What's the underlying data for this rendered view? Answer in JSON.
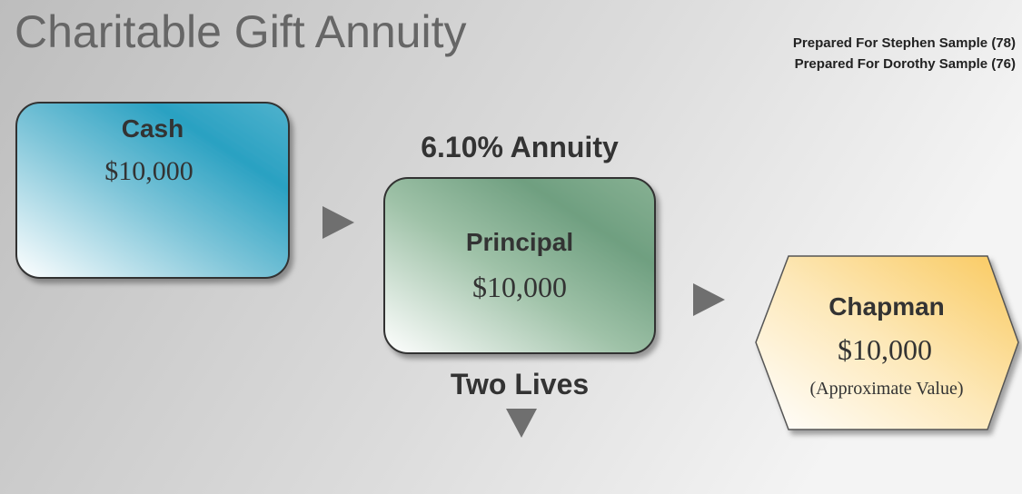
{
  "title": "Charitable Gift Annuity",
  "prepared_for": [
    "Prepared For Stephen Sample (78)",
    "Prepared For Dorothy Sample (76)"
  ],
  "nodes": [
    {
      "label": "Cash",
      "value": "$10,000"
    },
    {
      "label": "Principal",
      "value": "$10,000",
      "above": "6.10% Annuity",
      "below": "Two Lives"
    },
    {
      "label": "Chapman",
      "value": "$10,000",
      "note": "(Approximate Value)"
    }
  ]
}
